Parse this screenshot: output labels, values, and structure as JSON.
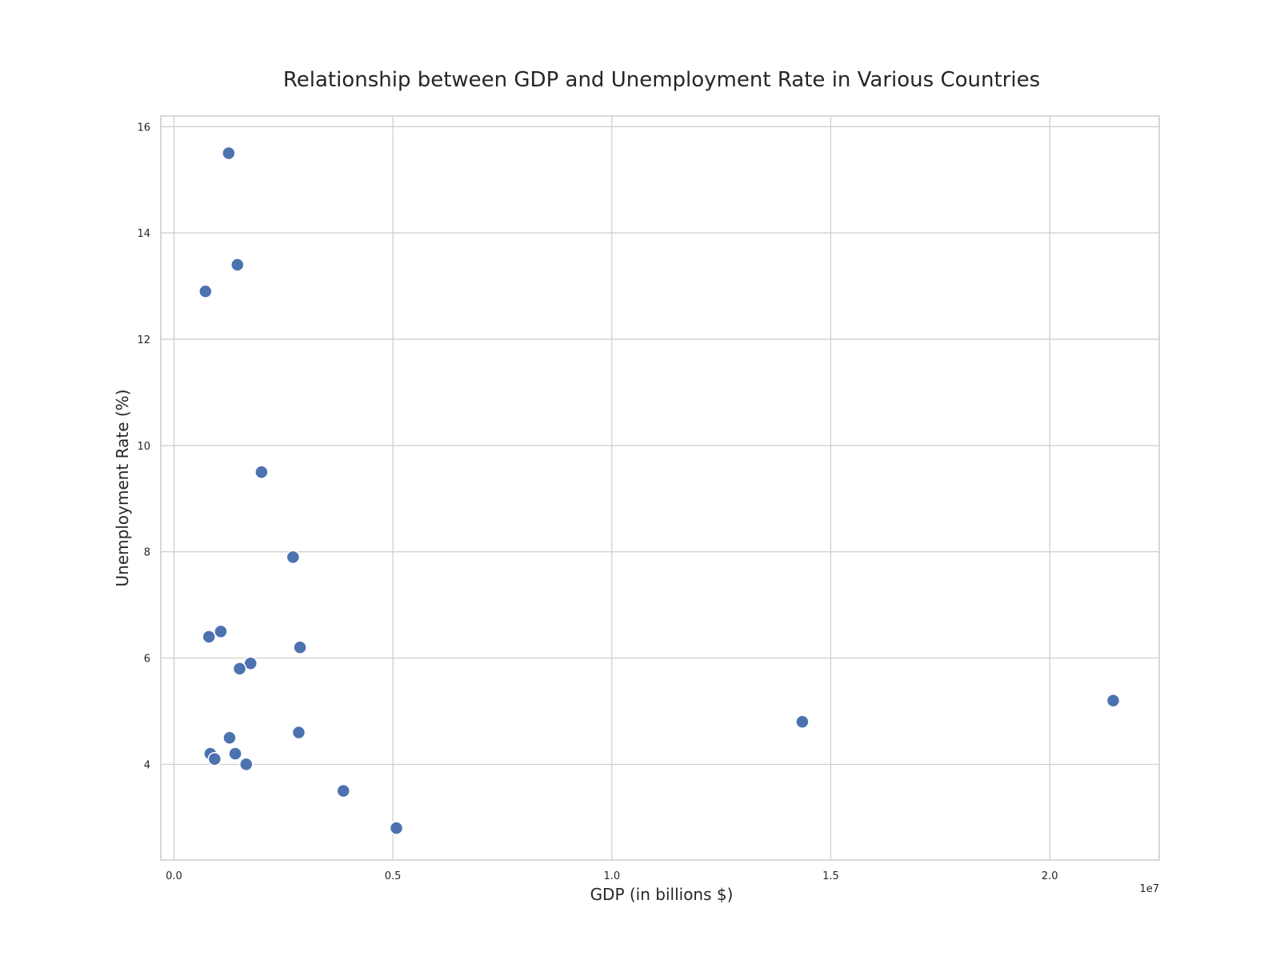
{
  "chart_data": {
    "type": "scatter",
    "title": "Relationship between GDP and Unemployment Rate in Various Countries",
    "xlabel": "GDP (in billions $)",
    "ylabel": "Unemployment Rate (%)",
    "x_offset_label": "1e7",
    "xlim": [
      -0.03,
      2.25
    ],
    "ylim": [
      2.2,
      16.2
    ],
    "x_ticks": [
      0.0,
      0.5,
      1.0,
      1.5,
      2.0
    ],
    "x_tick_labels": [
      "0.0",
      "0.5",
      "1.0",
      "1.5",
      "2.0"
    ],
    "y_ticks": [
      4,
      6,
      8,
      10,
      12,
      14,
      16
    ],
    "y_tick_labels": [
      "4",
      "6",
      "8",
      "10",
      "12",
      "14",
      "16"
    ],
    "grid": true,
    "point_color": "#4c72b0",
    "x_unit_note": "x values in units of 1e7 as printed on the axis",
    "points": [
      {
        "x": 0.125,
        "y": 15.5
      },
      {
        "x": 0.145,
        "y": 13.4
      },
      {
        "x": 0.072,
        "y": 12.9
      },
      {
        "x": 0.2,
        "y": 9.5
      },
      {
        "x": 0.272,
        "y": 7.9
      },
      {
        "x": 0.107,
        "y": 6.5
      },
      {
        "x": 0.08,
        "y": 6.4
      },
      {
        "x": 0.288,
        "y": 6.2
      },
      {
        "x": 0.175,
        "y": 5.9
      },
      {
        "x": 0.15,
        "y": 5.8
      },
      {
        "x": 2.145,
        "y": 5.2
      },
      {
        "x": 1.435,
        "y": 4.8
      },
      {
        "x": 0.285,
        "y": 4.6
      },
      {
        "x": 0.127,
        "y": 4.5
      },
      {
        "x": 0.083,
        "y": 4.2
      },
      {
        "x": 0.14,
        "y": 4.2
      },
      {
        "x": 0.093,
        "y": 4.1
      },
      {
        "x": 0.165,
        "y": 4.0
      },
      {
        "x": 0.387,
        "y": 3.5
      },
      {
        "x": 0.508,
        "y": 2.8
      }
    ]
  }
}
